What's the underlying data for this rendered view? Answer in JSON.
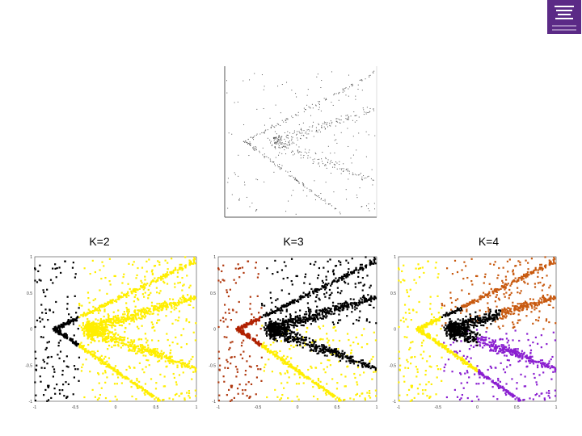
{
  "panels": [
    {
      "label": "K=2"
    },
    {
      "label": "K=3"
    },
    {
      "label": "K=4"
    }
  ],
  "y_tick_labels": [
    "1",
    "0.5",
    "0",
    "-0.5",
    "-1"
  ],
  "x_tick_labels": [
    "-1",
    "-0.5",
    "0",
    "0.5",
    "1"
  ]
}
